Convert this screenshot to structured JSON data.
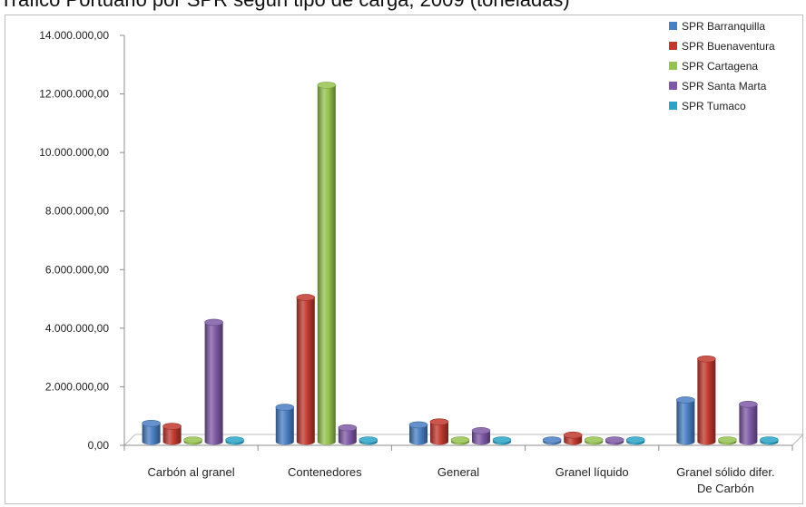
{
  "page": {
    "title_fragment": "Tráfico Portuario por SPR según tipo de carga, 2009 (toneladas)"
  },
  "chart_data": {
    "type": "bar",
    "title": "",
    "xlabel": "",
    "ylabel": "",
    "ylim": [
      0,
      14000000
    ],
    "yticks": [
      "0,00",
      "2.000.000,00",
      "4.000.000,00",
      "6.000.000,00",
      "8.000.000,00",
      "10.000.000,00",
      "12.000.000,00",
      "14.000.000,00"
    ],
    "categories": [
      [
        "Carbón al granel"
      ],
      [
        "Contenedores"
      ],
      [
        "General"
      ],
      [
        "Granel líquido"
      ],
      [
        "Granel sólido difer.",
        "De Carbón"
      ]
    ],
    "legend_position": "top-right",
    "grid": false,
    "series": [
      {
        "name": "SPR Barranquilla",
        "color": "#4a7fc4",
        "values": [
          750000,
          1300000,
          700000,
          20000,
          1550000
        ]
      },
      {
        "name": "SPR Buenaventura",
        "color": "#c0392f",
        "values": [
          650000,
          5050000,
          800000,
          350000,
          2950000
        ]
      },
      {
        "name": "SPR Cartagena",
        "color": "#95c34f",
        "values": [
          0,
          12300000,
          20000,
          0,
          0
        ]
      },
      {
        "name": "SPR Santa Marta",
        "color": "#7e59a6",
        "values": [
          4200000,
          600000,
          500000,
          150000,
          1400000
        ]
      },
      {
        "name": "SPR Tumaco",
        "color": "#2aa3c6",
        "values": [
          0,
          0,
          40000,
          20000,
          0
        ]
      }
    ]
  }
}
